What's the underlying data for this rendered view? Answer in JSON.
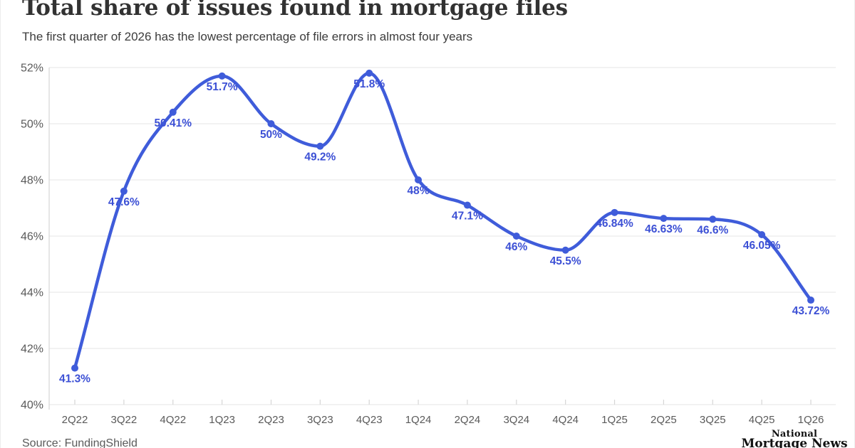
{
  "header": {
    "title": "Total share of issues found in mortgage files",
    "subtitle": "The first quarter of 2026 has the lowest percentage of file errors in almost four years"
  },
  "footer": {
    "source": "Source: FundingShield",
    "logo_line1": "National",
    "logo_line2": "Mortgage News"
  },
  "chart_data": {
    "type": "line",
    "title": "Total share of issues found in mortgage files",
    "subtitle": "The first quarter of 2026 has the lowest percentage of file errors in almost four years",
    "source": "FundingShield",
    "categories": [
      "2Q22",
      "3Q22",
      "4Q22",
      "1Q23",
      "2Q23",
      "3Q23",
      "4Q23",
      "1Q24",
      "2Q24",
      "3Q24",
      "4Q24",
      "1Q25",
      "2Q25",
      "3Q25",
      "4Q25",
      "1Q26"
    ],
    "series": [
      {
        "name": "Total share of issues found in mortgage files",
        "values": [
          41.3,
          47.6,
          50.41,
          51.7,
          50,
          49.2,
          51.8,
          48,
          47.1,
          46,
          45.5,
          46.84,
          46.63,
          46.6,
          46.05,
          43.72
        ]
      }
    ],
    "point_labels": [
      "41.3%",
      "47.6%",
      "50.41%",
      "51.7%",
      "50%",
      "49.2%",
      "51.8%",
      "48%",
      "47.1%",
      "46%",
      "45.5%",
      "46.84%",
      "46.63%",
      "46.6%",
      "46.05%",
      "43.72%"
    ],
    "xlabel": "",
    "ylabel": "",
    "ylim": [
      40,
      52
    ],
    "yticks": [
      40,
      42,
      44,
      46,
      48,
      50,
      52
    ],
    "ytick_suffix": "%",
    "grid": true,
    "legend": false,
    "interpolation": "monotone",
    "colors": {
      "line": "#3F5CDA",
      "point": "#3F5CDA",
      "point_label": "#3C50D5",
      "grid": "#ebebeb",
      "axis": "#d6d6d6",
      "tick_label": "#5a5a5a",
      "title": "#323232",
      "subtitle": "#3c3c3c",
      "source": "#5a5a5a",
      "logo": "#111111"
    }
  }
}
